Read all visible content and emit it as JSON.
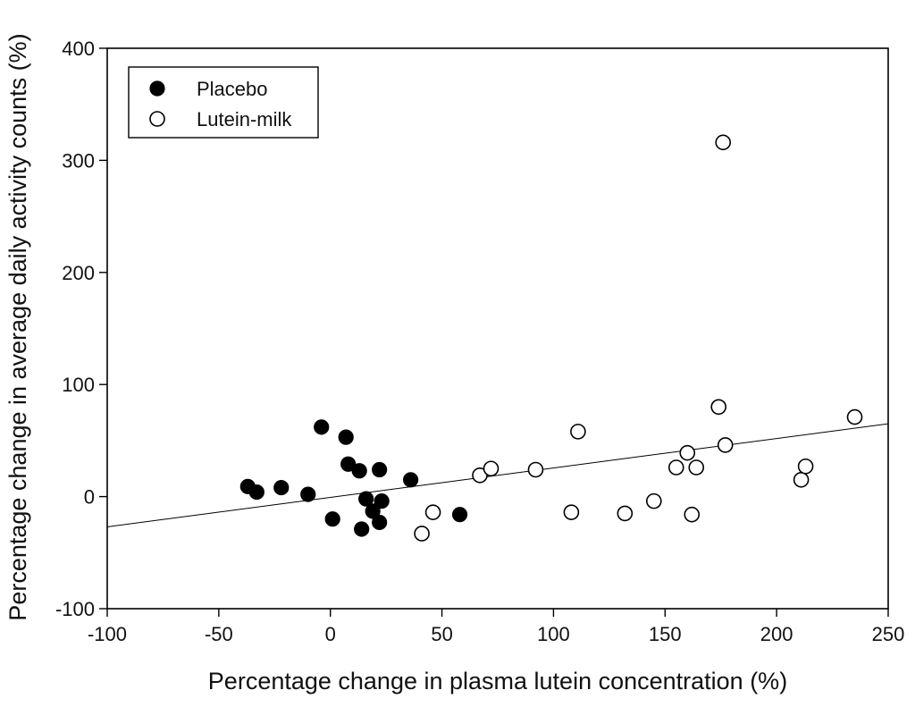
{
  "chart_data": {
    "type": "scatter",
    "title": "",
    "xlabel": "Percentage change in plasma lutein concentration (%)",
    "ylabel": "Percentage change in average daily activity counts (%)",
    "xlim": [
      -100,
      250
    ],
    "ylim": [
      -100,
      400
    ],
    "x_ticks": [
      -100,
      -50,
      0,
      50,
      100,
      150,
      200,
      250
    ],
    "y_ticks": [
      -100,
      0,
      100,
      200,
      300,
      400
    ],
    "x_tick_labels": [
      "-100",
      "-50",
      "0",
      "50",
      "100",
      "150",
      "200",
      "250"
    ],
    "y_tick_labels": [
      "-100",
      "0",
      "100",
      "200",
      "300",
      "400"
    ],
    "grid": false,
    "legend_position": "top-left",
    "series": [
      {
        "name": "Placebo",
        "marker": "filled-circle",
        "points": [
          {
            "x": -37,
            "y": 9
          },
          {
            "x": -33,
            "y": 4
          },
          {
            "x": -22,
            "y": 8
          },
          {
            "x": -10,
            "y": 2
          },
          {
            "x": -4,
            "y": 62
          },
          {
            "x": 1,
            "y": -20
          },
          {
            "x": 7,
            "y": 53
          },
          {
            "x": 8,
            "y": 29
          },
          {
            "x": 13,
            "y": 23
          },
          {
            "x": 14,
            "y": -29
          },
          {
            "x": 16,
            "y": -2
          },
          {
            "x": 19,
            "y": -13
          },
          {
            "x": 22,
            "y": 24
          },
          {
            "x": 22,
            "y": -23
          },
          {
            "x": 23,
            "y": -4
          },
          {
            "x": 36,
            "y": 15
          },
          {
            "x": 58,
            "y": -16
          }
        ]
      },
      {
        "name": "Lutein-milk",
        "marker": "open-circle",
        "points": [
          {
            "x": 41,
            "y": -33
          },
          {
            "x": 46,
            "y": -14
          },
          {
            "x": 67,
            "y": 19
          },
          {
            "x": 72,
            "y": 25
          },
          {
            "x": 92,
            "y": 24
          },
          {
            "x": 108,
            "y": -14
          },
          {
            "x": 111,
            "y": 58
          },
          {
            "x": 132,
            "y": -15
          },
          {
            "x": 145,
            "y": -4
          },
          {
            "x": 155,
            "y": 26
          },
          {
            "x": 160,
            "y": 39
          },
          {
            "x": 162,
            "y": -16
          },
          {
            "x": 164,
            "y": 26
          },
          {
            "x": 174,
            "y": 80
          },
          {
            "x": 176,
            "y": 316
          },
          {
            "x": 177,
            "y": 46
          },
          {
            "x": 211,
            "y": 15
          },
          {
            "x": 213,
            "y": 27
          },
          {
            "x": 235,
            "y": 71
          }
        ]
      }
    ],
    "trendline": {
      "x": [
        -100,
        250
      ],
      "y": [
        -27,
        65
      ]
    }
  }
}
